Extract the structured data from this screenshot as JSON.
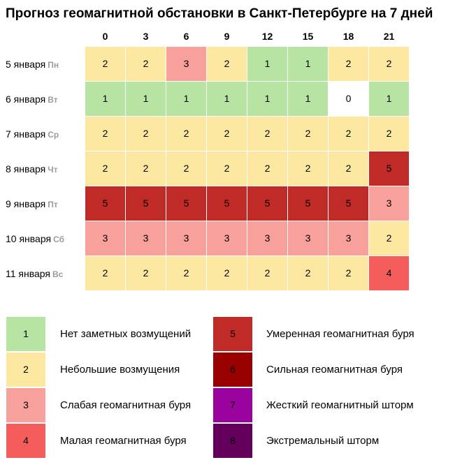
{
  "chart_data": {
    "type": "heatmap",
    "title": "Прогноз геомагнитной обстановки в Санкт-Петербурге на 7 дней",
    "x": [
      "0",
      "3",
      "6",
      "9",
      "12",
      "15",
      "18",
      "21"
    ],
    "rows": [
      {
        "date": "5 января",
        "dow": "Пн",
        "values": [
          2,
          2,
          3,
          2,
          1,
          1,
          2,
          2
        ]
      },
      {
        "date": "6 января",
        "dow": "Вт",
        "values": [
          1,
          1,
          1,
          1,
          1,
          1,
          0,
          1
        ]
      },
      {
        "date": "7 января",
        "dow": "Ср",
        "values": [
          2,
          2,
          2,
          2,
          2,
          2,
          2,
          2
        ]
      },
      {
        "date": "8 января",
        "dow": "Чт",
        "values": [
          2,
          2,
          2,
          2,
          2,
          2,
          2,
          5
        ]
      },
      {
        "date": "9 января",
        "dow": "Пт",
        "values": [
          5,
          5,
          5,
          5,
          5,
          5,
          5,
          3
        ]
      },
      {
        "date": "10 января",
        "dow": "Сб",
        "values": [
          3,
          3,
          3,
          3,
          3,
          3,
          3,
          2
        ]
      },
      {
        "date": "11 января",
        "dow": "Вс",
        "values": [
          2,
          2,
          2,
          2,
          2,
          2,
          2,
          4
        ]
      }
    ],
    "colors": {
      "0": "#ffffff",
      "1": "#b8e4a3",
      "2": "#fde8a1",
      "3": "#f8a09c",
      "4": "#f45d5b",
      "5": "#c02a27",
      "6": "#990000",
      "7": "#9b039f",
      "8": "#62005c"
    },
    "legend": [
      {
        "level": "1",
        "label": "Нет заметных возмущений",
        "color": "#b8e4a3"
      },
      {
        "level": "2",
        "label": "Небольшие возмущения",
        "color": "#fde8a1"
      },
      {
        "level": "3",
        "label": "Слабая геомагнитная буря",
        "color": "#f8a09c"
      },
      {
        "level": "4",
        "label": "Малая геомагнитная буря",
        "color": "#f45d5b"
      },
      {
        "level": "5",
        "label": "Умеренная геомагнитная буря",
        "color": "#c02a27"
      },
      {
        "level": "6",
        "label": "Сильная геомагнитная буря",
        "color": "#990000"
      },
      {
        "level": "7",
        "label": "Жесткий геомагнитный шторм",
        "color": "#9b039f"
      },
      {
        "level": "8",
        "label": "Экстремальный шторм",
        "color": "#62005c"
      }
    ]
  }
}
